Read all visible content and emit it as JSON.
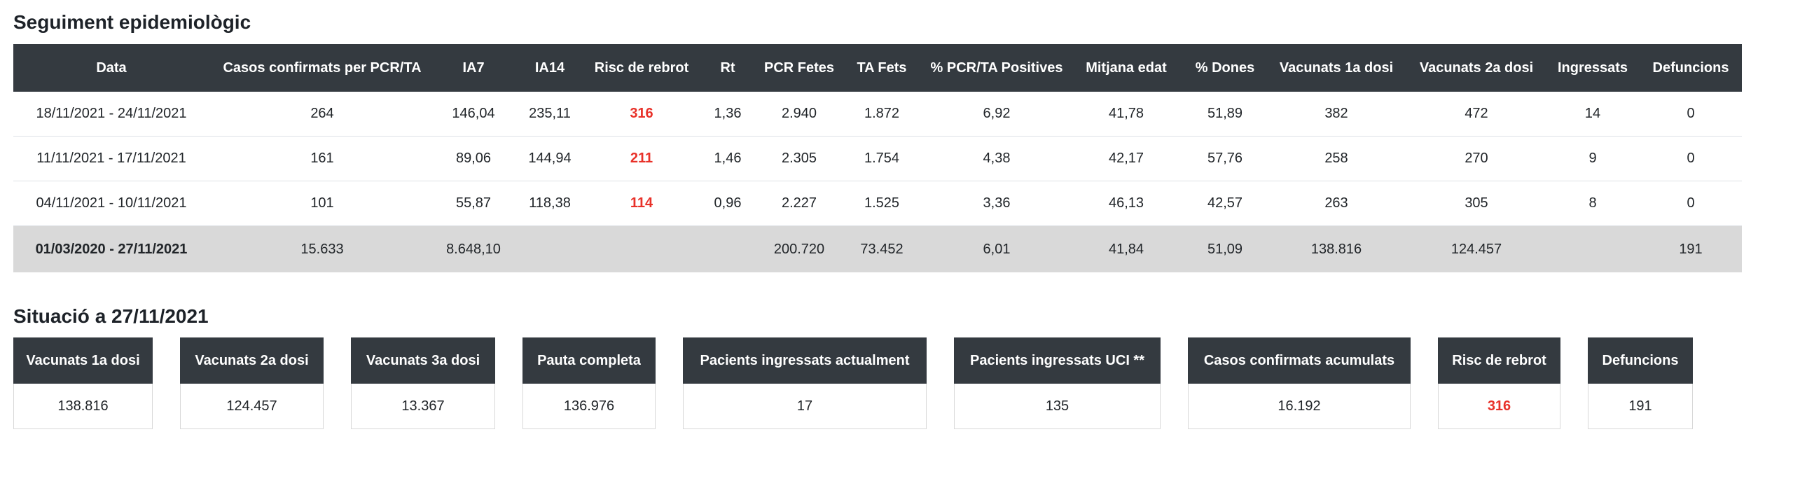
{
  "colors": {
    "dark_header_bg": "#343a40",
    "header_text": "#ffffff",
    "total_row_bg": "#d9d9d9",
    "risk_red": "#e83129",
    "row_border": "#dee2e6",
    "body_text": "#212529",
    "card_border": "#d8d8d8"
  },
  "section1": {
    "title": "Seguiment epidemiològic"
  },
  "table": {
    "columns": [
      "Data",
      "Casos confirmats per PCR/TA",
      "IA7",
      "IA14",
      "Risc de rebrot",
      "Rt",
      "PCR Fetes",
      "TA Fets",
      "% PCR/TA Positives",
      "Mitjana edat",
      "% Dones",
      "Vacunats 1a dosi",
      "Vacunats 2a dosi",
      "Ingressats",
      "Defuncions"
    ],
    "rows": [
      {
        "cells": [
          "18/11/2021 - 24/11/2021",
          "264",
          "146,04",
          "235,11",
          "316",
          "1,36",
          "2.940",
          "1.872",
          "6,92",
          "41,78",
          "51,89",
          "382",
          "472",
          "14",
          "0"
        ]
      },
      {
        "cells": [
          "11/11/2021 - 17/11/2021",
          "161",
          "89,06",
          "144,94",
          "211",
          "1,46",
          "2.305",
          "1.754",
          "4,38",
          "42,17",
          "57,76",
          "258",
          "270",
          "9",
          "0"
        ]
      },
      {
        "cells": [
          "04/11/2021 - 10/11/2021",
          "101",
          "55,87",
          "118,38",
          "114",
          "0,96",
          "2.227",
          "1.525",
          "3,36",
          "46,13",
          "42,57",
          "263",
          "305",
          "8",
          "0"
        ]
      }
    ],
    "total_row": {
      "cells": [
        "01/03/2020 - 27/11/2021",
        "15.633",
        "8.648,10",
        "",
        "",
        "",
        "200.720",
        "73.452",
        "6,01",
        "41,84",
        "51,09",
        "138.816",
        "124.457",
        "",
        "191"
      ]
    }
  },
  "section2": {
    "title": "Situació a 27/11/2021"
  },
  "cards": [
    {
      "label": "Vacunats 1a dosi",
      "value": "138.816"
    },
    {
      "label": "Vacunats 2a dosi",
      "value": "124.457"
    },
    {
      "label": "Vacunats 3a dosi",
      "value": "13.367"
    },
    {
      "label": "Pauta completa",
      "value": "136.976"
    },
    {
      "label": "Pacients ingressats actualment",
      "value": "17"
    },
    {
      "label": "Pacients ingressats UCI **",
      "value": "135"
    },
    {
      "label": "Casos confirmats acumulats",
      "value": "16.192"
    },
    {
      "label": "Risc de rebrot",
      "value": "316",
      "highlight": "red"
    },
    {
      "label": "Defuncions",
      "value": "191"
    }
  ]
}
